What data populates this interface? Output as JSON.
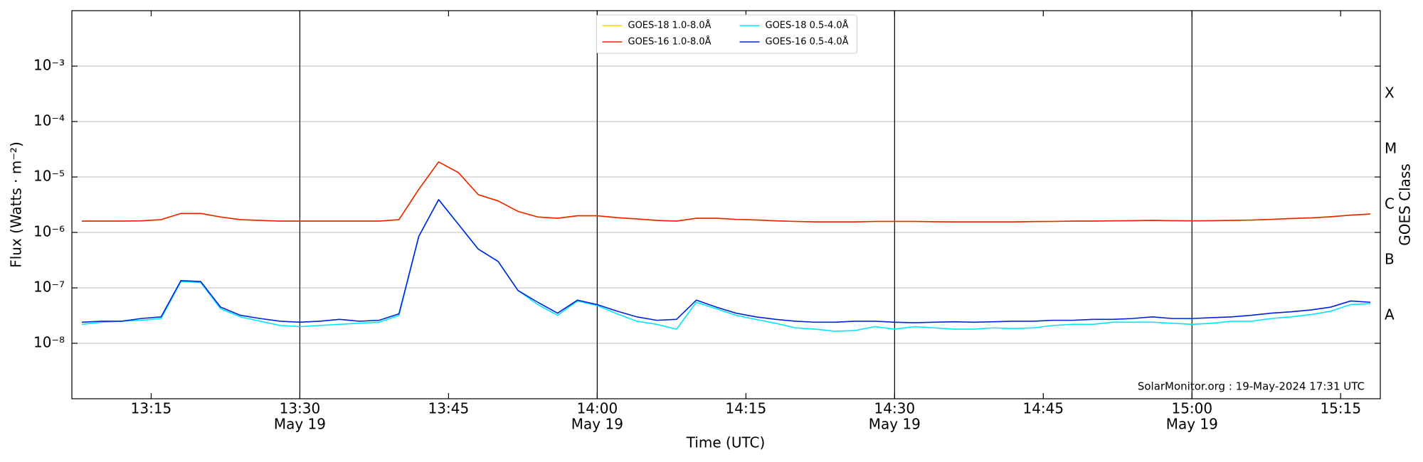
{
  "chart_data": {
    "type": "line",
    "y_label": "Flux (Watts · m⁻²)",
    "x_label": "Time (UTC)",
    "y2_label": "GOES Class",
    "annotation": "SolarMonitor.org : 19-May-2024 17:31 UTC",
    "log_scale": true,
    "grid": true,
    "legend": "upper center",
    "xlim": [
      "13:07",
      "15:19"
    ],
    "xticks": [
      "13:15",
      "13:30",
      "13:45",
      "14:00",
      "14:15",
      "14:30",
      "14:45",
      "15:00",
      "15:15"
    ],
    "xtick_dates": [
      {
        "value": "13:30",
        "label": "May 19"
      },
      {
        "value": "14:00",
        "label": "May 19"
      },
      {
        "value": "14:30",
        "label": "May 19"
      },
      {
        "value": "15:00",
        "label": "May 19"
      }
    ],
    "ylim": [
      1e-09,
      0.01
    ],
    "yticks": [
      {
        "value": 1e-08,
        "label": "10⁻⁸"
      },
      {
        "value": 1e-07,
        "label": "10⁻⁷"
      },
      {
        "value": 1e-06,
        "label": "10⁻⁶"
      },
      {
        "value": 1e-05,
        "label": "10⁻⁵"
      },
      {
        "value": 0.0001,
        "label": "10⁻⁴"
      },
      {
        "value": 0.001,
        "label": "10⁻³"
      }
    ],
    "y2lim": [
      1e-09,
      0.01
    ],
    "y2ticks": [
      {
        "value": 3.16e-08,
        "label": "A"
      },
      {
        "value": 3.16e-07,
        "label": "B"
      },
      {
        "value": 3.16e-06,
        "label": "C"
      },
      {
        "value": 3.16e-05,
        "label": "M"
      },
      {
        "value": 0.000316,
        "label": "X"
      }
    ],
    "x": [
      "13:08",
      "13:10",
      "13:12",
      "13:14",
      "13:16",
      "13:18",
      "13:20",
      "13:22",
      "13:24",
      "13:26",
      "13:28",
      "13:30",
      "13:32",
      "13:34",
      "13:36",
      "13:38",
      "13:40",
      "13:42",
      "13:44",
      "13:46",
      "13:48",
      "13:50",
      "13:52",
      "13:54",
      "13:56",
      "13:58",
      "14:00",
      "14:02",
      "14:04",
      "14:06",
      "14:08",
      "14:10",
      "14:12",
      "14:14",
      "14:16",
      "14:18",
      "14:20",
      "14:22",
      "14:24",
      "14:26",
      "14:28",
      "14:30",
      "14:32",
      "14:34",
      "14:36",
      "14:38",
      "14:40",
      "14:42",
      "14:44",
      "14:46",
      "14:48",
      "14:50",
      "14:52",
      "14:54",
      "14:56",
      "14:58",
      "15:00",
      "15:02",
      "15:04",
      "15:06",
      "15:08",
      "15:10",
      "15:12",
      "15:14",
      "15:16",
      "15:18"
    ],
    "series": [
      {
        "name": "GOES-18 1.0-8.0Å",
        "color": "#ffd700",
        "values": [
          1.6e-06,
          1.6e-06,
          1.6e-06,
          1.62e-06,
          1.7e-06,
          2.2e-06,
          2.2e-06,
          1.9e-06,
          1.7e-06,
          1.65e-06,
          1.6e-06,
          1.6e-06,
          1.6e-06,
          1.6e-06,
          1.6e-06,
          1.6e-06,
          1.7e-06,
          6e-06,
          1.87e-05,
          1.2e-05,
          4.8e-06,
          3.7e-06,
          2.4e-06,
          1.9e-06,
          1.8e-06,
          2e-06,
          2e-06,
          1.85e-06,
          1.75e-06,
          1.65e-06,
          1.6e-06,
          1.8e-06,
          1.8e-06,
          1.72e-06,
          1.68e-06,
          1.62e-06,
          1.58e-06,
          1.55e-06,
          1.55e-06,
          1.55e-06,
          1.58e-06,
          1.58e-06,
          1.58e-06,
          1.56e-06,
          1.55e-06,
          1.55e-06,
          1.55e-06,
          1.55e-06,
          1.57e-06,
          1.58e-06,
          1.6e-06,
          1.6e-06,
          1.62e-06,
          1.63e-06,
          1.65e-06,
          1.63e-06,
          1.62e-06,
          1.63e-06,
          1.65e-06,
          1.67e-06,
          1.72e-06,
          1.78e-06,
          1.83e-06,
          1.92e-06,
          2.05e-06,
          2.15e-06
        ]
      },
      {
        "name": "GOES-16 1.0-8.0Å",
        "color": "#ee2200",
        "values": [
          1.6e-06,
          1.6e-06,
          1.6e-06,
          1.62e-06,
          1.7e-06,
          2.2e-06,
          2.2e-06,
          1.9e-06,
          1.7e-06,
          1.65e-06,
          1.6e-06,
          1.6e-06,
          1.6e-06,
          1.6e-06,
          1.6e-06,
          1.6e-06,
          1.7e-06,
          6e-06,
          1.87e-05,
          1.2e-05,
          4.8e-06,
          3.7e-06,
          2.4e-06,
          1.9e-06,
          1.8e-06,
          2e-06,
          2e-06,
          1.85e-06,
          1.75e-06,
          1.65e-06,
          1.6e-06,
          1.8e-06,
          1.8e-06,
          1.72e-06,
          1.68e-06,
          1.62e-06,
          1.58e-06,
          1.55e-06,
          1.55e-06,
          1.55e-06,
          1.58e-06,
          1.58e-06,
          1.58e-06,
          1.56e-06,
          1.55e-06,
          1.55e-06,
          1.55e-06,
          1.55e-06,
          1.57e-06,
          1.58e-06,
          1.6e-06,
          1.6e-06,
          1.62e-06,
          1.63e-06,
          1.65e-06,
          1.63e-06,
          1.62e-06,
          1.63e-06,
          1.65e-06,
          1.67e-06,
          1.72e-06,
          1.78e-06,
          1.83e-06,
          1.92e-06,
          2.05e-06,
          2.15e-06
        ]
      },
      {
        "name": "GOES-18 0.5-4.0Å",
        "color": "#00e5ff",
        "values": [
          2.2e-08,
          2.4e-08,
          2.5e-08,
          2.6e-08,
          2.8e-08,
          1.3e-07,
          1.25e-07,
          4.2e-08,
          3e-08,
          2.5e-08,
          2.1e-08,
          2e-08,
          2.1e-08,
          2.2e-08,
          2.3e-08,
          2.4e-08,
          3.2e-08,
          8.5e-07,
          3.9e-06,
          1.4e-06,
          5e-07,
          3e-07,
          9e-08,
          5e-08,
          3.2e-08,
          5.8e-08,
          4.8e-08,
          3.4e-08,
          2.5e-08,
          2.2e-08,
          1.8e-08,
          5.5e-08,
          4.2e-08,
          3.2e-08,
          2.7e-08,
          2.3e-08,
          1.9e-08,
          1.8e-08,
          1.65e-08,
          1.7e-08,
          2e-08,
          1.8e-08,
          2e-08,
          1.9e-08,
          1.8e-08,
          1.8e-08,
          1.9e-08,
          1.85e-08,
          1.9e-08,
          2.1e-08,
          2.2e-08,
          2.2e-08,
          2.4e-08,
          2.4e-08,
          2.4e-08,
          2.3e-08,
          2.2e-08,
          2.3e-08,
          2.5e-08,
          2.5e-08,
          2.8e-08,
          3e-08,
          3.3e-08,
          3.8e-08,
          5e-08,
          5.2e-08
        ]
      },
      {
        "name": "GOES-16 0.5-4.0Å",
        "color": "#0022dd",
        "values": [
          2.4e-08,
          2.5e-08,
          2.5e-08,
          2.8e-08,
          3e-08,
          1.35e-07,
          1.3e-07,
          4.5e-08,
          3.2e-08,
          2.8e-08,
          2.5e-08,
          2.4e-08,
          2.5e-08,
          2.7e-08,
          2.5e-08,
          2.6e-08,
          3.4e-08,
          8.5e-07,
          3.9e-06,
          1.4e-06,
          5e-07,
          3e-07,
          9e-08,
          5.5e-08,
          3.5e-08,
          6e-08,
          5e-08,
          3.8e-08,
          3e-08,
          2.6e-08,
          2.7e-08,
          6e-08,
          4.5e-08,
          3.5e-08,
          3e-08,
          2.7e-08,
          2.5e-08,
          2.4e-08,
          2.4e-08,
          2.5e-08,
          2.5e-08,
          2.4e-08,
          2.35e-08,
          2.4e-08,
          2.45e-08,
          2.4e-08,
          2.45e-08,
          2.5e-08,
          2.5e-08,
          2.6e-08,
          2.6e-08,
          2.7e-08,
          2.7e-08,
          2.8e-08,
          3e-08,
          2.8e-08,
          2.8e-08,
          2.9e-08,
          3e-08,
          3.2e-08,
          3.5e-08,
          3.7e-08,
          4e-08,
          4.5e-08,
          5.8e-08,
          5.5e-08
        ]
      }
    ]
  }
}
